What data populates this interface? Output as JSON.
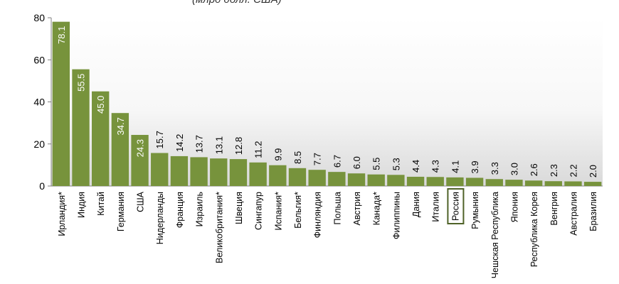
{
  "unit_label": "(млрд долл. США)",
  "chart_data": {
    "type": "bar",
    "title": "",
    "xlabel": "",
    "ylabel": "",
    "ylim": [
      0,
      80
    ],
    "yticks": [
      0,
      20,
      40,
      60,
      80
    ],
    "grid": false,
    "bar_color": "#77933c",
    "highlight_color": "#4f6228",
    "highlight_category": "Россия",
    "categories": [
      "Ирландия*",
      "Индия",
      "Китай",
      "Германия",
      "США",
      "Нидерланды",
      "Франция",
      "Израиль",
      "Великобритания*",
      "Швеция",
      "Сингапур",
      "Испания*",
      "Бельгия*",
      "Финляндия",
      "Польша",
      "Австрия",
      "Канада*",
      "Филиппины",
      "Дания",
      "Италия",
      "Россия",
      "Румыния",
      "Чешская Республика",
      "Япония",
      "Республика Корея",
      "Венгрия",
      "Австралия",
      "Бразилия"
    ],
    "values": [
      78.1,
      55.5,
      45.0,
      34.7,
      24.3,
      15.7,
      14.2,
      13.7,
      13.1,
      12.8,
      11.2,
      9.9,
      8.5,
      7.7,
      6.7,
      6.0,
      5.5,
      5.3,
      4.4,
      4.3,
      4.1,
      3.9,
      3.3,
      3.0,
      2.6,
      2.3,
      2.2,
      2.0
    ],
    "value_labels": [
      "78.1",
      "55.5",
      "45.0",
      "34.7",
      "24.3",
      "15.7",
      "14.2",
      "13.7",
      "13.1",
      "12.8",
      "11.2",
      "9.9",
      "8.5",
      "7.7",
      "6.7",
      "6.0",
      "5.5",
      "5.3",
      "4.4",
      "4.3",
      "4.1",
      "3.9",
      "3.3",
      "3.0",
      "2.6",
      "2.3",
      "2.2",
      "2.0"
    ]
  }
}
